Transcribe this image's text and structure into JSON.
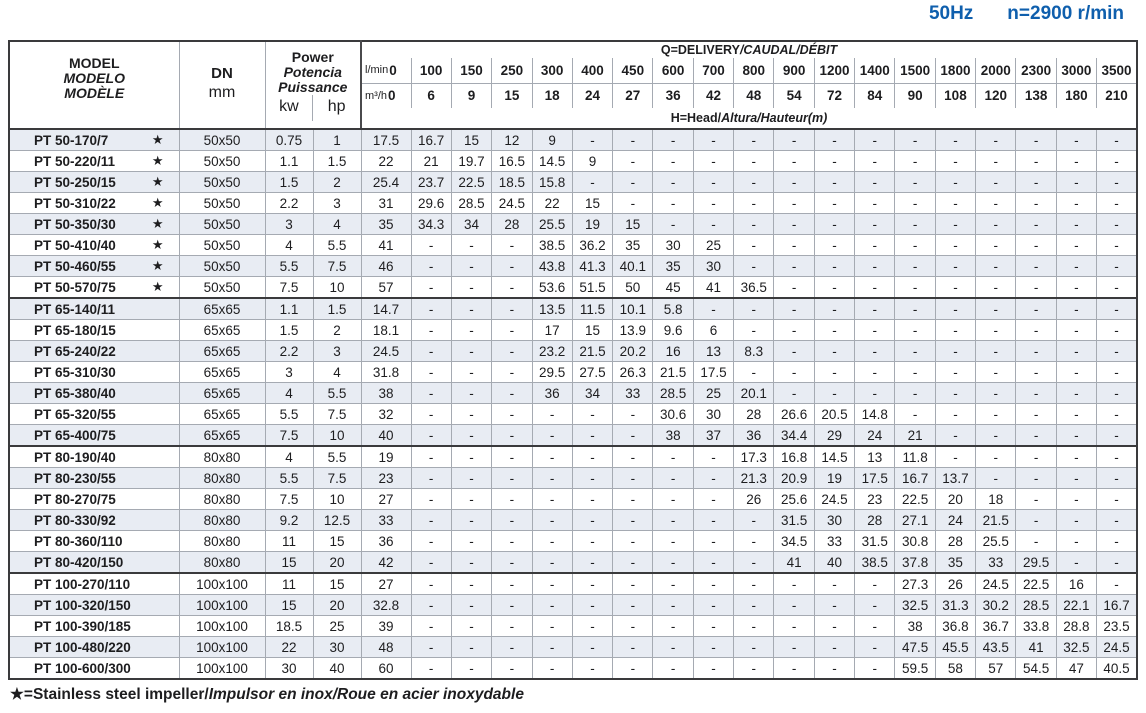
{
  "page_title": {
    "frequency": "50Hz",
    "speed": "n=2900 r/min"
  },
  "symbols": {
    "star": "★"
  },
  "table": {
    "header": {
      "model": {
        "line1": "MODEL",
        "line2": "MODELO",
        "line3": "MODÈLE",
        "unit": "mm"
      },
      "dn": {
        "label": "DN"
      },
      "power": {
        "line1": "Power",
        "line2": "Potencia",
        "line3": "Puissance",
        "unit_kw": "kw",
        "unit_hp": "hp"
      },
      "q_title": {
        "en": "Q=DELIVERY",
        "intl": "/CAUDAL/DÉBIT"
      },
      "h_title": {
        "en": "H=Head/",
        "intl": "Altura/Hauteur(m)"
      },
      "flow_lmin": {
        "unit": "l/min",
        "values": [
          "0",
          "100",
          "150",
          "250",
          "300",
          "400",
          "450",
          "600",
          "700",
          "800",
          "900",
          "1200",
          "1400",
          "1500",
          "1800",
          "2000",
          "2300",
          "3000",
          "3500"
        ]
      },
      "flow_m3h": {
        "unit": "m³/h",
        "values": [
          "0",
          "6",
          "9",
          "15",
          "18",
          "24",
          "27",
          "36",
          "42",
          "48",
          "54",
          "72",
          "84",
          "90",
          "108",
          "120",
          "138",
          "180",
          "210"
        ]
      }
    },
    "rows": [
      {
        "model": "PT 50-170/7",
        "star": true,
        "sep": false,
        "dn": "50x50",
        "kw": "0.75",
        "hp": "1",
        "heads": [
          "17.5",
          "16.7",
          "15",
          "12",
          "9",
          "-",
          "-",
          "-",
          "-",
          "-",
          "-",
          "-",
          "-",
          "-",
          "-",
          "-",
          "-",
          "-",
          "-"
        ]
      },
      {
        "model": "PT 50-220/11",
        "star": true,
        "sep": false,
        "dn": "50x50",
        "kw": "1.1",
        "hp": "1.5",
        "heads": [
          "22",
          "21",
          "19.7",
          "16.5",
          "14.5",
          "9",
          "-",
          "-",
          "-",
          "-",
          "-",
          "-",
          "-",
          "-",
          "-",
          "-",
          "-",
          "-",
          "-"
        ]
      },
      {
        "model": "PT 50-250/15",
        "star": true,
        "sep": false,
        "dn": "50x50",
        "kw": "1.5",
        "hp": "2",
        "heads": [
          "25.4",
          "23.7",
          "22.5",
          "18.5",
          "15.8",
          "-",
          "-",
          "-",
          "-",
          "-",
          "-",
          "-",
          "-",
          "-",
          "-",
          "-",
          "-",
          "-",
          "-"
        ]
      },
      {
        "model": "PT 50-310/22",
        "star": true,
        "sep": false,
        "dn": "50x50",
        "kw": "2.2",
        "hp": "3",
        "heads": [
          "31",
          "29.6",
          "28.5",
          "24.5",
          "22",
          "15",
          "-",
          "-",
          "-",
          "-",
          "-",
          "-",
          "-",
          "-",
          "-",
          "-",
          "-",
          "-",
          "-"
        ]
      },
      {
        "model": "PT 50-350/30",
        "star": true,
        "sep": false,
        "dn": "50x50",
        "kw": "3",
        "hp": "4",
        "heads": [
          "35",
          "34.3",
          "34",
          "28",
          "25.5",
          "19",
          "15",
          "-",
          "-",
          "-",
          "-",
          "-",
          "-",
          "-",
          "-",
          "-",
          "-",
          "-",
          "-"
        ]
      },
      {
        "model": "PT 50-410/40",
        "star": true,
        "sep": false,
        "dn": "50x50",
        "kw": "4",
        "hp": "5.5",
        "heads": [
          "41",
          "-",
          "-",
          "-",
          "38.5",
          "36.2",
          "35",
          "30",
          "25",
          "-",
          "-",
          "-",
          "-",
          "-",
          "-",
          "-",
          "-",
          "-",
          "-"
        ]
      },
      {
        "model": "PT 50-460/55",
        "star": true,
        "sep": false,
        "dn": "50x50",
        "kw": "5.5",
        "hp": "7.5",
        "heads": [
          "46",
          "-",
          "-",
          "-",
          "43.8",
          "41.3",
          "40.1",
          "35",
          "30",
          "-",
          "-",
          "-",
          "-",
          "-",
          "-",
          "-",
          "-",
          "-",
          "-"
        ]
      },
      {
        "model": "PT 50-570/75",
        "star": true,
        "sep": false,
        "dn": "50x50",
        "kw": "7.5",
        "hp": "10",
        "heads": [
          "57",
          "-",
          "-",
          "-",
          "53.6",
          "51.5",
          "50",
          "45",
          "41",
          "36.5",
          "-",
          "-",
          "-",
          "-",
          "-",
          "-",
          "-",
          "-",
          "-"
        ]
      },
      {
        "model": "PT 65-140/11",
        "star": false,
        "sep": true,
        "dn": "65x65",
        "kw": "1.1",
        "hp": "1.5",
        "heads": [
          "14.7",
          "-",
          "-",
          "-",
          "13.5",
          "11.5",
          "10.1",
          "5.8",
          "-",
          "-",
          "-",
          "-",
          "-",
          "-",
          "-",
          "-",
          "-",
          "-",
          "-"
        ]
      },
      {
        "model": "PT 65-180/15",
        "star": false,
        "sep": false,
        "dn": "65x65",
        "kw": "1.5",
        "hp": "2",
        "heads": [
          "18.1",
          "-",
          "-",
          "-",
          "17",
          "15",
          "13.9",
          "9.6",
          "6",
          "-",
          "-",
          "-",
          "-",
          "-",
          "-",
          "-",
          "-",
          "-",
          "-"
        ]
      },
      {
        "model": "PT 65-240/22",
        "star": false,
        "sep": false,
        "dn": "65x65",
        "kw": "2.2",
        "hp": "3",
        "heads": [
          "24.5",
          "-",
          "-",
          "-",
          "23.2",
          "21.5",
          "20.2",
          "16",
          "13",
          "8.3",
          "-",
          "-",
          "-",
          "-",
          "-",
          "-",
          "-",
          "-",
          "-"
        ]
      },
      {
        "model": "PT 65-310/30",
        "star": false,
        "sep": false,
        "dn": "65x65",
        "kw": "3",
        "hp": "4",
        "heads": [
          "31.8",
          "-",
          "-",
          "-",
          "29.5",
          "27.5",
          "26.3",
          "21.5",
          "17.5",
          "-",
          "-",
          "-",
          "-",
          "-",
          "-",
          "-",
          "-",
          "-",
          "-"
        ]
      },
      {
        "model": "PT 65-380/40",
        "star": false,
        "sep": false,
        "dn": "65x65",
        "kw": "4",
        "hp": "5.5",
        "heads": [
          "38",
          "-",
          "-",
          "-",
          "36",
          "34",
          "33",
          "28.5",
          "25",
          "20.1",
          "-",
          "-",
          "-",
          "-",
          "-",
          "-",
          "-",
          "-",
          "-"
        ]
      },
      {
        "model": "PT 65-320/55",
        "star": false,
        "sep": false,
        "dn": "65x65",
        "kw": "5.5",
        "hp": "7.5",
        "heads": [
          "32",
          "-",
          "-",
          "-",
          "-",
          "-",
          "-",
          "30.6",
          "30",
          "28",
          "26.6",
          "20.5",
          "14.8",
          "-",
          "-",
          "-",
          "-",
          "-",
          "-"
        ]
      },
      {
        "model": "PT 65-400/75",
        "star": false,
        "sep": false,
        "dn": "65x65",
        "kw": "7.5",
        "hp": "10",
        "heads": [
          "40",
          "-",
          "-",
          "-",
          "-",
          "-",
          "-",
          "38",
          "37",
          "36",
          "34.4",
          "29",
          "24",
          "21",
          "-",
          "-",
          "-",
          "-",
          "-"
        ]
      },
      {
        "model": "PT 80-190/40",
        "star": false,
        "sep": true,
        "dn": "80x80",
        "kw": "4",
        "hp": "5.5",
        "heads": [
          "19",
          "-",
          "-",
          "-",
          "-",
          "-",
          "-",
          "-",
          "-",
          "17.3",
          "16.8",
          "14.5",
          "13",
          "11.8",
          "-",
          "-",
          "-",
          "-",
          "-"
        ]
      },
      {
        "model": "PT 80-230/55",
        "star": false,
        "sep": false,
        "dn": "80x80",
        "kw": "5.5",
        "hp": "7.5",
        "heads": [
          "23",
          "-",
          "-",
          "-",
          "-",
          "-",
          "-",
          "-",
          "-",
          "21.3",
          "20.9",
          "19",
          "17.5",
          "16.7",
          "13.7",
          "-",
          "-",
          "-",
          "-"
        ]
      },
      {
        "model": "PT 80-270/75",
        "star": false,
        "sep": false,
        "dn": "80x80",
        "kw": "7.5",
        "hp": "10",
        "heads": [
          "27",
          "-",
          "-",
          "-",
          "-",
          "-",
          "-",
          "-",
          "-",
          "26",
          "25.6",
          "24.5",
          "23",
          "22.5",
          "20",
          "18",
          "-",
          "-",
          "-"
        ]
      },
      {
        "model": "PT 80-330/92",
        "star": false,
        "sep": false,
        "dn": "80x80",
        "kw": "9.2",
        "hp": "12.5",
        "heads": [
          "33",
          "-",
          "-",
          "-",
          "-",
          "-",
          "-",
          "-",
          "-",
          "-",
          "31.5",
          "30",
          "28",
          "27.1",
          "24",
          "21.5",
          "-",
          "-",
          "-"
        ]
      },
      {
        "model": "PT 80-360/110",
        "star": false,
        "sep": false,
        "dn": "80x80",
        "kw": "11",
        "hp": "15",
        "heads": [
          "36",
          "-",
          "-",
          "-",
          "-",
          "-",
          "-",
          "-",
          "-",
          "-",
          "34.5",
          "33",
          "31.5",
          "30.8",
          "28",
          "25.5",
          "-",
          "-",
          "-"
        ]
      },
      {
        "model": "PT 80-420/150",
        "star": false,
        "sep": false,
        "dn": "80x80",
        "kw": "15",
        "hp": "20",
        "heads": [
          "42",
          "-",
          "-",
          "-",
          "-",
          "-",
          "-",
          "-",
          "-",
          "-",
          "41",
          "40",
          "38.5",
          "37.8",
          "35",
          "33",
          "29.5",
          "-",
          "-"
        ]
      },
      {
        "model": "PT 100-270/110",
        "star": false,
        "sep": true,
        "dn": "100x100",
        "kw": "11",
        "hp": "15",
        "heads": [
          "27",
          "-",
          "-",
          "-",
          "-",
          "-",
          "-",
          "-",
          "-",
          "-",
          "-",
          "-",
          "-",
          "27.3",
          "26",
          "24.5",
          "22.5",
          "16",
          "-"
        ]
      },
      {
        "model": "PT 100-320/150",
        "star": false,
        "sep": false,
        "dn": "100x100",
        "kw": "15",
        "hp": "20",
        "heads": [
          "32.8",
          "-",
          "-",
          "-",
          "-",
          "-",
          "-",
          "-",
          "-",
          "-",
          "-",
          "-",
          "-",
          "32.5",
          "31.3",
          "30.2",
          "28.5",
          "22.1",
          "16.7"
        ]
      },
      {
        "model": "PT 100-390/185",
        "star": false,
        "sep": false,
        "dn": "100x100",
        "kw": "18.5",
        "hp": "25",
        "heads": [
          "39",
          "-",
          "-",
          "-",
          "-",
          "-",
          "-",
          "-",
          "-",
          "-",
          "-",
          "-",
          "-",
          "38",
          "36.8",
          "36.7",
          "33.8",
          "28.8",
          "23.5"
        ]
      },
      {
        "model": "PT 100-480/220",
        "star": false,
        "sep": false,
        "dn": "100x100",
        "kw": "22",
        "hp": "30",
        "heads": [
          "48",
          "-",
          "-",
          "-",
          "-",
          "-",
          "-",
          "-",
          "-",
          "-",
          "-",
          "-",
          "-",
          "47.5",
          "45.5",
          "43.5",
          "41",
          "32.5",
          "24.5"
        ]
      },
      {
        "model": "PT 100-600/300",
        "star": false,
        "sep": false,
        "dn": "100x100",
        "kw": "30",
        "hp": "40",
        "heads": [
          "60",
          "-",
          "-",
          "-",
          "-",
          "-",
          "-",
          "-",
          "-",
          "-",
          "-",
          "-",
          "-",
          "59.5",
          "58",
          "57",
          "54.5",
          "47",
          "40.5"
        ]
      }
    ]
  },
  "footnote": {
    "en": "★=Stainless steel impeller/",
    "intl": "Impulsor en inox/Roue en acier inoxydable"
  }
}
